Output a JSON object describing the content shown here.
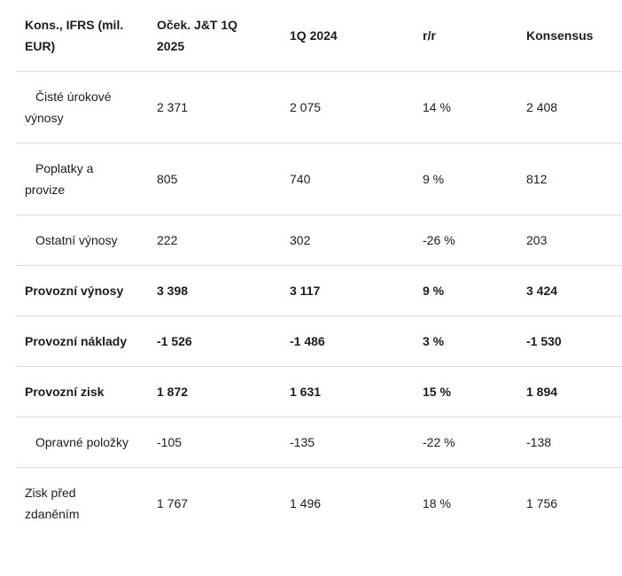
{
  "table": {
    "header": [
      "Kons., IFRS (mil. EUR)",
      "Oček. J&T 1Q 2025",
      "1Q 2024",
      "r/r",
      "Konsensus"
    ],
    "rows": [
      {
        "cells": [
          "Čisté úrokové výnosy",
          "2 371",
          "2 075",
          "14 %",
          "2 408"
        ],
        "bold": false,
        "indent": true
      },
      {
        "cells": [
          "Poplatky a provize",
          "805",
          "740",
          "9 %",
          "812"
        ],
        "bold": false,
        "indent": true
      },
      {
        "cells": [
          "Ostatní výnosy",
          "222",
          "302",
          "-26 %",
          "203"
        ],
        "bold": false,
        "indent": true
      },
      {
        "cells": [
          "Provozní výnosy",
          "3 398",
          "3 117",
          "9 %",
          "3 424"
        ],
        "bold": true,
        "indent": false
      },
      {
        "cells": [
          "Provozní náklady",
          "-1 526",
          "-1 486",
          "3 %",
          "-1 530"
        ],
        "bold": true,
        "indent": false
      },
      {
        "cells": [
          "Provozní zisk",
          "1 872",
          "1 631",
          "15 %",
          "1 894"
        ],
        "bold": true,
        "indent": false
      },
      {
        "cells": [
          "Opravné položky",
          "-105",
          "-135",
          "-22 %",
          "-138"
        ],
        "bold": false,
        "indent": true
      },
      {
        "cells": [
          "Zisk před zdaněním",
          "1 767",
          "1 496",
          "18 %",
          "1 756"
        ],
        "bold": false,
        "indent": false
      }
    ]
  }
}
